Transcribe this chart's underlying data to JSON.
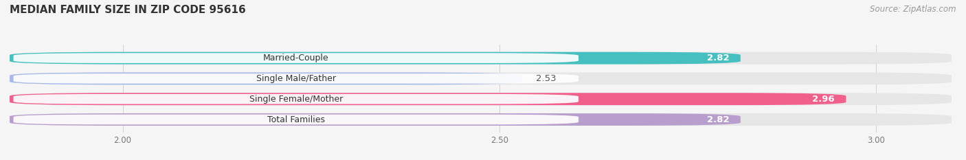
{
  "title": "MEDIAN FAMILY SIZE IN ZIP CODE 95616",
  "source": "Source: ZipAtlas.com",
  "categories": [
    "Married-Couple",
    "Single Male/Father",
    "Single Female/Mother",
    "Total Families"
  ],
  "values": [
    2.82,
    2.53,
    2.96,
    2.82
  ],
  "bar_colors": [
    "#45BFBF",
    "#A8B8E8",
    "#F0608A",
    "#B89ECC"
  ],
  "bg_bar_color": "#E6E6E6",
  "xlim": [
    1.85,
    3.1
  ],
  "xticks": [
    2.0,
    2.5,
    3.0
  ],
  "bar_height": 0.6,
  "value_fontsize": 9.5,
  "label_fontsize": 9,
  "title_fontsize": 11,
  "source_fontsize": 8.5,
  "background_color": "#F5F5F5"
}
